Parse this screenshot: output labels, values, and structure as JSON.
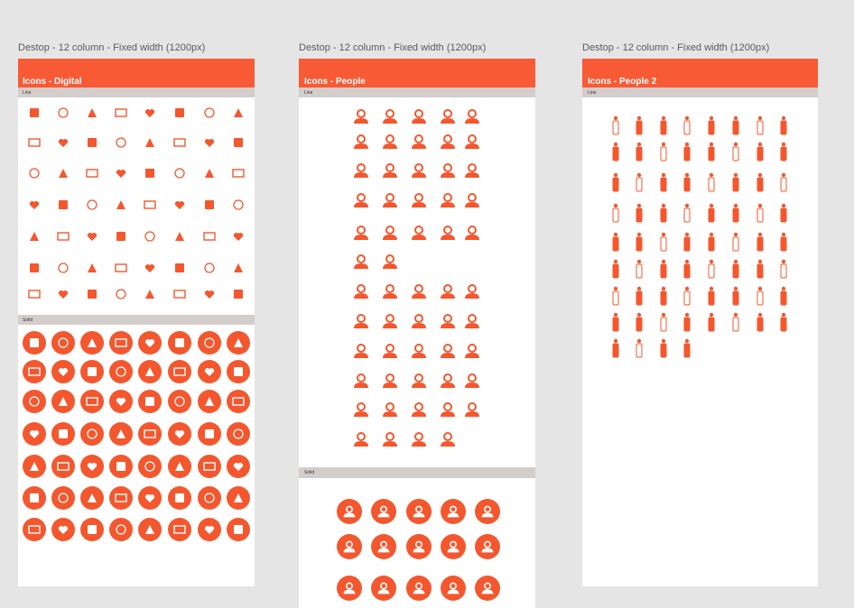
{
  "frames": [
    {
      "label": "Destop - 12 column - Fixed width (1200px)",
      "title": "Icons - Digital",
      "sections": [
        "Line",
        "Solid"
      ]
    },
    {
      "label": "Destop - 12 column - Fixed width (1200px)",
      "title": "Icons - People",
      "sections": [
        "Line",
        "Solid"
      ]
    },
    {
      "label": "Destop - 12 column - Fixed width (1200px)",
      "title": "Icons - People 2",
      "sections": [
        "Line"
      ]
    }
  ]
}
